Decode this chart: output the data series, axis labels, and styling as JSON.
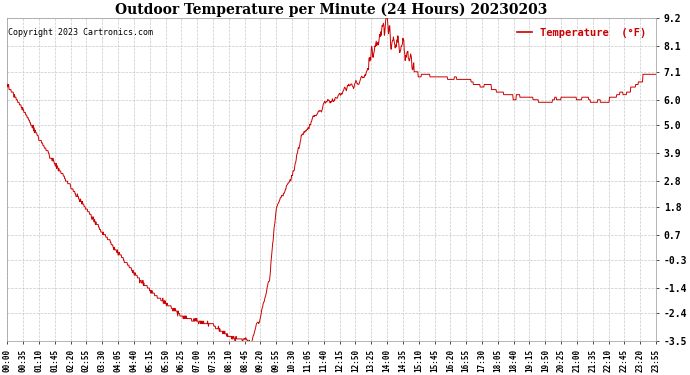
{
  "title": "Outdoor Temperature per Minute (24 Hours) 20230203",
  "copyright": "Copyright 2023 Cartronics.com",
  "legend_label": "Temperature  (°F)",
  "bg_color": "#ffffff",
  "plot_bg_color": "#ffffff",
  "line_color": "#cc0000",
  "grid_color": "#bbbbbb",
  "yticks": [
    9.2,
    8.1,
    7.1,
    6.0,
    5.0,
    3.9,
    2.8,
    1.8,
    0.7,
    -0.3,
    -1.4,
    -2.4,
    -3.5
  ],
  "ylim": [
    -3.5,
    9.2
  ],
  "x_tick_labels": [
    "00:00",
    "00:35",
    "01:10",
    "01:45",
    "02:20",
    "02:55",
    "03:30",
    "04:05",
    "04:40",
    "05:15",
    "05:50",
    "06:25",
    "07:00",
    "07:35",
    "08:10",
    "08:45",
    "09:20",
    "09:55",
    "10:30",
    "11:05",
    "11:40",
    "12:15",
    "12:50",
    "13:25",
    "14:00",
    "14:35",
    "15:10",
    "15:45",
    "16:20",
    "16:55",
    "17:30",
    "18:05",
    "18:40",
    "19:15",
    "19:50",
    "20:25",
    "21:00",
    "21:35",
    "22:10",
    "22:45",
    "23:20",
    "23:55"
  ],
  "key_times": [
    0,
    35,
    70,
    105,
    140,
    175,
    210,
    245,
    280,
    315,
    350,
    385,
    420,
    455,
    490,
    525,
    540,
    560,
    580,
    595,
    615,
    630,
    650,
    665,
    685,
    700,
    715,
    730,
    745,
    760,
    775,
    790,
    800,
    810,
    820,
    830,
    840,
    850,
    860,
    870,
    880,
    890,
    900,
    910,
    925,
    940,
    960,
    980,
    1000,
    1020,
    1040,
    1060,
    1080,
    1100,
    1120,
    1140,
    1160,
    1180,
    1200,
    1220,
    1240,
    1260,
    1280,
    1300,
    1320,
    1340,
    1360,
    1380,
    1400,
    1420,
    1435
  ],
  "key_temps": [
    6.6,
    5.6,
    4.5,
    3.5,
    2.6,
    1.7,
    0.8,
    0.0,
    -0.8,
    -1.5,
    -2.0,
    -2.5,
    -2.7,
    -2.85,
    -3.3,
    -3.45,
    -3.45,
    -2.5,
    -1.0,
    1.8,
    2.5,
    3.0,
    4.5,
    5.0,
    5.4,
    5.9,
    6.0,
    6.1,
    6.4,
    6.5,
    6.6,
    7.0,
    7.2,
    7.8,
    8.5,
    9.0,
    9.2,
    8.5,
    8.2,
    8.1,
    7.9,
    7.5,
    7.1,
    7.05,
    7.0,
    6.95,
    6.9,
    6.85,
    6.8,
    6.75,
    6.6,
    6.5,
    6.4,
    6.2,
    6.1,
    6.05,
    6.0,
    5.95,
    6.0,
    6.05,
    6.1,
    6.05,
    6.0,
    5.95,
    6.0,
    6.1,
    6.2,
    6.5,
    6.8,
    7.0,
    7.1
  ]
}
